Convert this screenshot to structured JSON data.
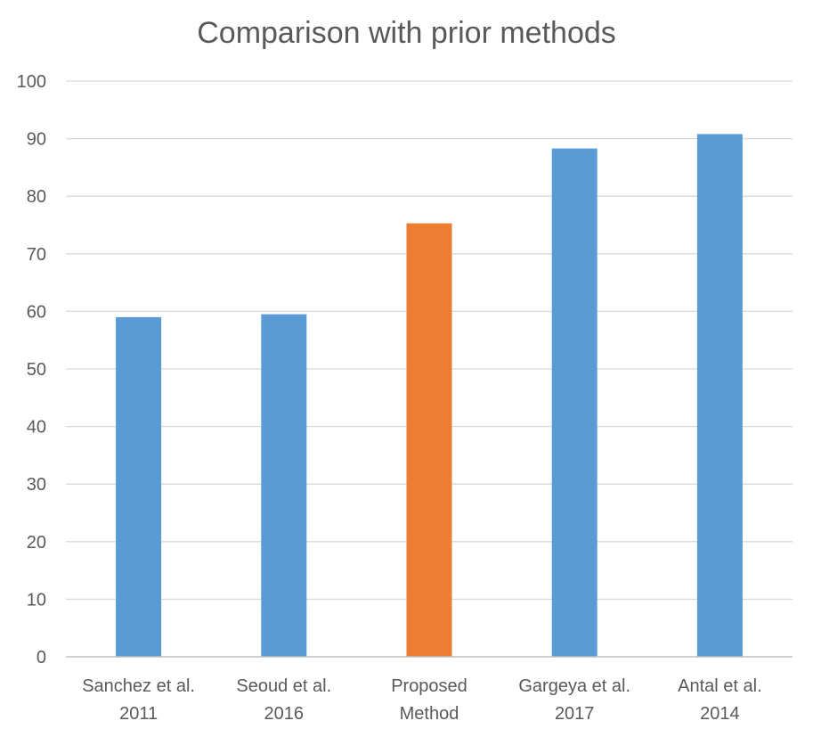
{
  "chart_data": {
    "type": "bar",
    "title": "Comparison with prior methods",
    "xlabel": "",
    "ylabel": "",
    "ylim": [
      0,
      100
    ],
    "yticks": [
      0,
      10,
      20,
      30,
      40,
      50,
      60,
      70,
      80,
      90,
      100
    ],
    "grid": true,
    "legend": "none",
    "categories": [
      [
        "Sanchez et al.",
        "2011"
      ],
      [
        "Seoud et al.",
        "2016"
      ],
      [
        "Proposed",
        "Method"
      ],
      [
        "Gargeya et al.",
        "2017"
      ],
      [
        "Antal et al.",
        "2014"
      ]
    ],
    "values": [
      59,
      59.5,
      75.3,
      88.3,
      90.8
    ],
    "bar_colors": [
      "#5B9BD5",
      "#5B9BD5",
      "#ED7D31",
      "#5B9BD5",
      "#5B9BD5"
    ],
    "gridline_color": "#D9D9D9",
    "axis_color": "#BFBFBF"
  }
}
